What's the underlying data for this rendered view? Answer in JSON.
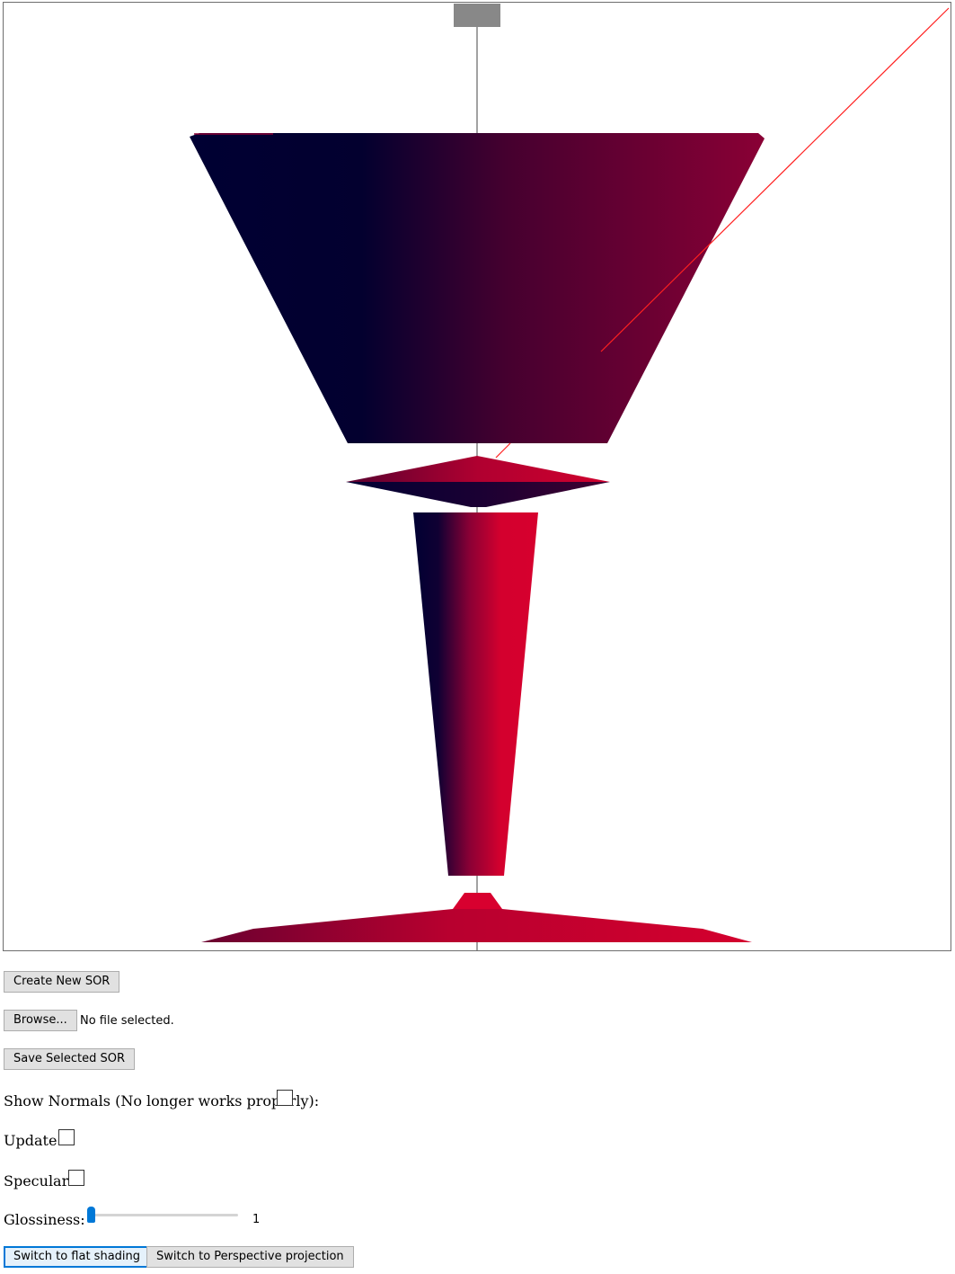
{
  "scene": {
    "colors": {
      "dark": "#000033",
      "mid": "#4a0030",
      "red": "#d4002e",
      "axis": "#444444",
      "light_marker": "#888888",
      "ray": "#ff2020"
    }
  },
  "controls": {
    "create_label": "Create New SOR",
    "browse_label": "Browse...",
    "file_status": "No file selected.",
    "save_label": "Save Selected SOR",
    "show_normals_label": "Show Normals (No longer works properly):",
    "update_label": "Update:",
    "specular_label": "Specular:",
    "glossiness_label": "Glossiness:",
    "glossiness_value": "1",
    "glossiness_fraction": 0,
    "flat_shading_label": "Switch to flat shading",
    "perspective_label": "Switch to Perspective projection"
  }
}
